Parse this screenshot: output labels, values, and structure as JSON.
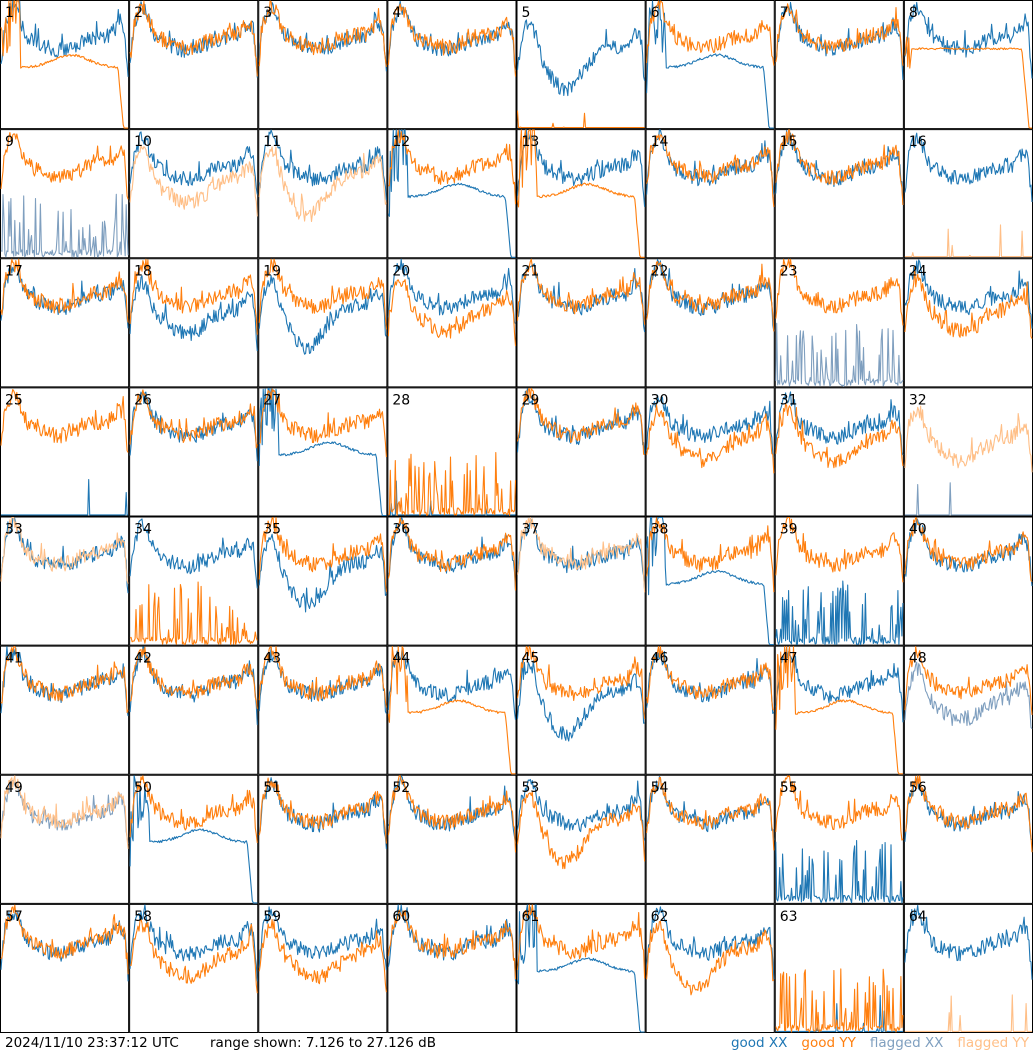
{
  "footer": {
    "timestamp": "2024/11/10 23:37:12 UTC",
    "range_text": "range shown: 7.126 to 27.126 dB"
  },
  "legend": [
    {
      "label": "good XX",
      "color": "#1f77b4"
    },
    {
      "label": "good YY",
      "color": "#ff7f0e"
    },
    {
      "label": "flagged XX",
      "color": "#7f9fbf"
    },
    {
      "label": "flagged YY",
      "color": "#ffbf87"
    }
  ],
  "colors": {
    "good_xx": "#1f77b4",
    "good_yy": "#ff7f0e",
    "flagged_xx": "#7f9fbf",
    "flagged_yy": "#ffbf87",
    "frame": "#000000"
  },
  "chart_data": {
    "type": "line",
    "ylim": [
      7.126,
      27.126
    ],
    "grid": {
      "rows": 8,
      "cols": 8
    },
    "panels": [
      {
        "id": "1",
        "xx": "good",
        "yy": "good",
        "xx_shape": "normal",
        "yy_shape": "dropout"
      },
      {
        "id": "2",
        "xx": "good",
        "yy": "good",
        "xx_shape": "normal",
        "yy_shape": "normal"
      },
      {
        "id": "3",
        "xx": "good",
        "yy": "good",
        "xx_shape": "normal",
        "yy_shape": "normal"
      },
      {
        "id": "4",
        "xx": "good",
        "yy": "good",
        "xx_shape": "normal",
        "yy_shape": "normal"
      },
      {
        "id": "5",
        "xx": "good",
        "yy": "good",
        "xx_shape": "deep",
        "yy_shape": "floor"
      },
      {
        "id": "6",
        "xx": "good",
        "yy": "good",
        "xx_shape": "dropout",
        "yy_shape": "normal"
      },
      {
        "id": "7",
        "xx": "good",
        "yy": "good",
        "xx_shape": "normal",
        "yy_shape": "normal"
      },
      {
        "id": "8",
        "xx": "good",
        "yy": "good",
        "xx_shape": "normal",
        "yy_shape": "smooth"
      },
      {
        "id": "9",
        "xx": "flagged",
        "yy": "good",
        "xx_shape": "spikes",
        "yy_shape": "normal"
      },
      {
        "id": "10",
        "xx": "good",
        "yy": "flagged",
        "xx_shape": "normal",
        "yy_shape": "lower"
      },
      {
        "id": "11",
        "xx": "good",
        "yy": "flagged",
        "xx_shape": "normal",
        "yy_shape": "deep"
      },
      {
        "id": "12",
        "xx": "good",
        "yy": "good",
        "xx_shape": "dropout",
        "yy_shape": "normal"
      },
      {
        "id": "13",
        "xx": "good",
        "yy": "good",
        "xx_shape": "normal",
        "yy_shape": "dropout"
      },
      {
        "id": "14",
        "xx": "good",
        "yy": "good",
        "xx_shape": "normal",
        "yy_shape": "normal"
      },
      {
        "id": "15",
        "xx": "good",
        "yy": "good",
        "xx_shape": "normal",
        "yy_shape": "normal"
      },
      {
        "id": "16",
        "xx": "good",
        "yy": "flagged",
        "xx_shape": "normal",
        "yy_shape": "floor"
      },
      {
        "id": "17",
        "xx": "good",
        "yy": "good",
        "xx_shape": "normal",
        "yy_shape": "normal"
      },
      {
        "id": "18",
        "xx": "good",
        "yy": "good",
        "xx_shape": "lower",
        "yy_shape": "normal"
      },
      {
        "id": "19",
        "xx": "good",
        "yy": "good",
        "xx_shape": "deep",
        "yy_shape": "normal"
      },
      {
        "id": "20",
        "xx": "good",
        "yy": "good",
        "xx_shape": "normal",
        "yy_shape": "lower"
      },
      {
        "id": "21",
        "xx": "good",
        "yy": "good",
        "xx_shape": "normal",
        "yy_shape": "normal"
      },
      {
        "id": "22",
        "xx": "good",
        "yy": "good",
        "xx_shape": "normal",
        "yy_shape": "normal"
      },
      {
        "id": "23",
        "xx": "flagged",
        "yy": "good",
        "xx_shape": "spikes",
        "yy_shape": "normal"
      },
      {
        "id": "24",
        "xx": "good",
        "yy": "good",
        "xx_shape": "normal",
        "yy_shape": "lower"
      },
      {
        "id": "25",
        "xx": "good",
        "yy": "good",
        "xx_shape": "floor",
        "yy_shape": "normal"
      },
      {
        "id": "26",
        "xx": "good",
        "yy": "good",
        "xx_shape": "normal",
        "yy_shape": "normal"
      },
      {
        "id": "27",
        "xx": "good",
        "yy": "good",
        "xx_shape": "dropout",
        "yy_shape": "normal"
      },
      {
        "id": "28",
        "xx": "good",
        "yy": "good",
        "xx_shape": "floor",
        "yy_shape": "spikes"
      },
      {
        "id": "29",
        "xx": "good",
        "yy": "good",
        "xx_shape": "normal",
        "yy_shape": "normal"
      },
      {
        "id": "30",
        "xx": "good",
        "yy": "good",
        "xx_shape": "normal",
        "yy_shape": "lower"
      },
      {
        "id": "31",
        "xx": "good",
        "yy": "good",
        "xx_shape": "normal",
        "yy_shape": "lower"
      },
      {
        "id": "32",
        "xx": "flagged",
        "yy": "flagged",
        "xx_shape": "floor",
        "yy_shape": "lower"
      },
      {
        "id": "33",
        "xx": "good",
        "yy": "flagged",
        "xx_shape": "normal",
        "yy_shape": "normal"
      },
      {
        "id": "34",
        "xx": "good",
        "yy": "good",
        "xx_shape": "normal",
        "yy_shape": "spikes"
      },
      {
        "id": "35",
        "xx": "good",
        "yy": "good",
        "xx_shape": "deep",
        "yy_shape": "normal"
      },
      {
        "id": "36",
        "xx": "good",
        "yy": "good",
        "xx_shape": "normal",
        "yy_shape": "normal"
      },
      {
        "id": "37",
        "xx": "good",
        "yy": "flagged",
        "xx_shape": "normal",
        "yy_shape": "normal"
      },
      {
        "id": "38",
        "xx": "good",
        "yy": "good",
        "xx_shape": "dropout",
        "yy_shape": "normal"
      },
      {
        "id": "39",
        "xx": "good",
        "yy": "good",
        "xx_shape": "spikes",
        "yy_shape": "normal"
      },
      {
        "id": "40",
        "xx": "good",
        "yy": "good",
        "xx_shape": "normal",
        "yy_shape": "normal"
      },
      {
        "id": "41",
        "xx": "good",
        "yy": "good",
        "xx_shape": "normal",
        "yy_shape": "normal"
      },
      {
        "id": "42",
        "xx": "good",
        "yy": "good",
        "xx_shape": "normal",
        "yy_shape": "normal"
      },
      {
        "id": "43",
        "xx": "good",
        "yy": "good",
        "xx_shape": "normal",
        "yy_shape": "normal"
      },
      {
        "id": "44",
        "xx": "good",
        "yy": "good",
        "xx_shape": "normal",
        "yy_shape": "dropout"
      },
      {
        "id": "45",
        "xx": "good",
        "yy": "good",
        "xx_shape": "deep",
        "yy_shape": "normal"
      },
      {
        "id": "46",
        "xx": "good",
        "yy": "good",
        "xx_shape": "normal",
        "yy_shape": "normal"
      },
      {
        "id": "47",
        "xx": "good",
        "yy": "good",
        "xx_shape": "normal",
        "yy_shape": "dropout"
      },
      {
        "id": "48",
        "xx": "flagged",
        "yy": "good",
        "xx_shape": "lower",
        "yy_shape": "normal"
      },
      {
        "id": "49",
        "xx": "flagged",
        "yy": "flagged",
        "xx_shape": "normal",
        "yy_shape": "normal"
      },
      {
        "id": "50",
        "xx": "good",
        "yy": "good",
        "xx_shape": "dropout",
        "yy_shape": "normal"
      },
      {
        "id": "51",
        "xx": "good",
        "yy": "good",
        "xx_shape": "normal",
        "yy_shape": "normal"
      },
      {
        "id": "52",
        "xx": "good",
        "yy": "good",
        "xx_shape": "normal",
        "yy_shape": "normal"
      },
      {
        "id": "53",
        "xx": "good",
        "yy": "good",
        "xx_shape": "normal",
        "yy_shape": "deep"
      },
      {
        "id": "54",
        "xx": "good",
        "yy": "good",
        "xx_shape": "normal",
        "yy_shape": "normal"
      },
      {
        "id": "55",
        "xx": "good",
        "yy": "good",
        "xx_shape": "spikes",
        "yy_shape": "normal"
      },
      {
        "id": "56",
        "xx": "good",
        "yy": "good",
        "xx_shape": "normal",
        "yy_shape": "normal"
      },
      {
        "id": "57",
        "xx": "good",
        "yy": "good",
        "xx_shape": "normal",
        "yy_shape": "normal"
      },
      {
        "id": "58",
        "xx": "good",
        "yy": "good",
        "xx_shape": "normal",
        "yy_shape": "lower"
      },
      {
        "id": "59",
        "xx": "good",
        "yy": "good",
        "xx_shape": "normal",
        "yy_shape": "lower"
      },
      {
        "id": "60",
        "xx": "good",
        "yy": "good",
        "xx_shape": "normal",
        "yy_shape": "normal"
      },
      {
        "id": "61",
        "xx": "good",
        "yy": "good",
        "xx_shape": "dropout",
        "yy_shape": "normal"
      },
      {
        "id": "62",
        "xx": "good",
        "yy": "good",
        "xx_shape": "normal",
        "yy_shape": "deep"
      },
      {
        "id": "63",
        "xx": "good",
        "yy": "good",
        "xx_shape": "floor",
        "yy_shape": "spikes"
      },
      {
        "id": "64",
        "xx": "good",
        "yy": "flagged",
        "xx_shape": "normal",
        "yy_shape": "floor"
      }
    ]
  }
}
